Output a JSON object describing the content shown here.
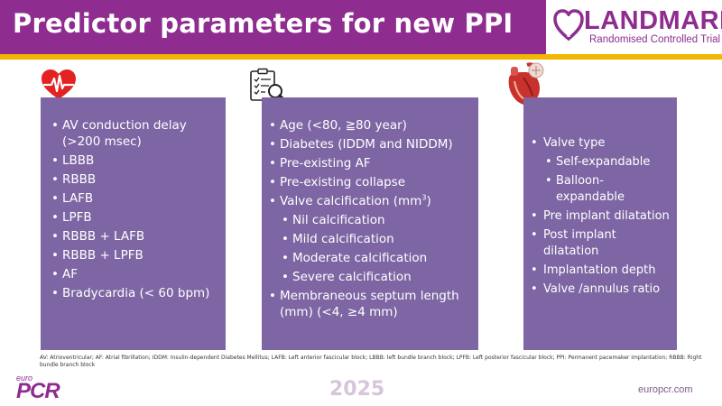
{
  "header": {
    "title": "Predictor parameters for new PPI",
    "logo_text": "LANDMARK",
    "logo_subtitle": "Randomised Controlled Trial"
  },
  "icons": [
    "heart-ecg-icon",
    "clipboard-magnifier-icon",
    "heart-valve-icon"
  ],
  "panels": [
    {
      "items": [
        {
          "text": "AV conduction delay (>200 msec)",
          "level": 1
        },
        {
          "text": "LBBB",
          "level": 1
        },
        {
          "text": "RBBB",
          "level": 1
        },
        {
          "text": "LAFB",
          "level": 1
        },
        {
          "text": "LPFB",
          "level": 1
        },
        {
          "text": "RBBB + LAFB",
          "level": 1
        },
        {
          "text": "RBBB + LPFB",
          "level": 1
        },
        {
          "text": "AF",
          "level": 1
        },
        {
          "text": "Bradycardia (< 60 bpm)",
          "level": 1
        }
      ]
    },
    {
      "items": [
        {
          "text": "Age (<80, ≧80 year)",
          "level": 1
        },
        {
          "text": "Diabetes (IDDM and NIDDM)",
          "level": 1
        },
        {
          "text": "Pre-existing AF",
          "level": 1
        },
        {
          "text": "Pre-existing collapse",
          "level": 1
        },
        {
          "text": "Valve calcification (mm",
          "sup": "3",
          "suffix": ")",
          "level": 1
        },
        {
          "text": "Nil calcification",
          "level": 2
        },
        {
          "text": "Mild calcification",
          "level": 2
        },
        {
          "text": "Moderate calcification",
          "level": 2
        },
        {
          "text": "Severe calcification",
          "level": 2
        },
        {
          "text": "Membraneous septum length (mm) (<4, ≥4 mm)",
          "level": 1
        }
      ]
    },
    {
      "items": [
        {
          "text": "Valve type",
          "level": 1
        },
        {
          "text": "Self-expandable",
          "level": 2
        },
        {
          "text": "Balloon-expandable",
          "level": 2
        },
        {
          "text": "Pre implant dilatation",
          "level": 1
        },
        {
          "text": "Post implant dilatation",
          "level": 1
        },
        {
          "text": "Implantation depth",
          "level": 1
        },
        {
          "text": "Valve /annulus ratio",
          "level": 1
        }
      ]
    }
  ],
  "footnote": "AV: Atrioventricular; AF: Atrial fibrillation; IDDM: Insulin-dependent Diabetes Mellitus; LAFB: Left anterior fascicular block; LBBB: left bundle branch block; LPFB: Left posterior fascicular block; PPI: Permanent pacemaker implantation; RBBB: Right bundle branch block",
  "footer": {
    "brand_prefix": "euro",
    "brand": "PCR",
    "year": "2025",
    "url": "europcr.com"
  },
  "colors": {
    "header": "#8e2d8f",
    "accent_bar": "#f2b700",
    "panel": "#7d66a3",
    "heart": "#e32322"
  }
}
